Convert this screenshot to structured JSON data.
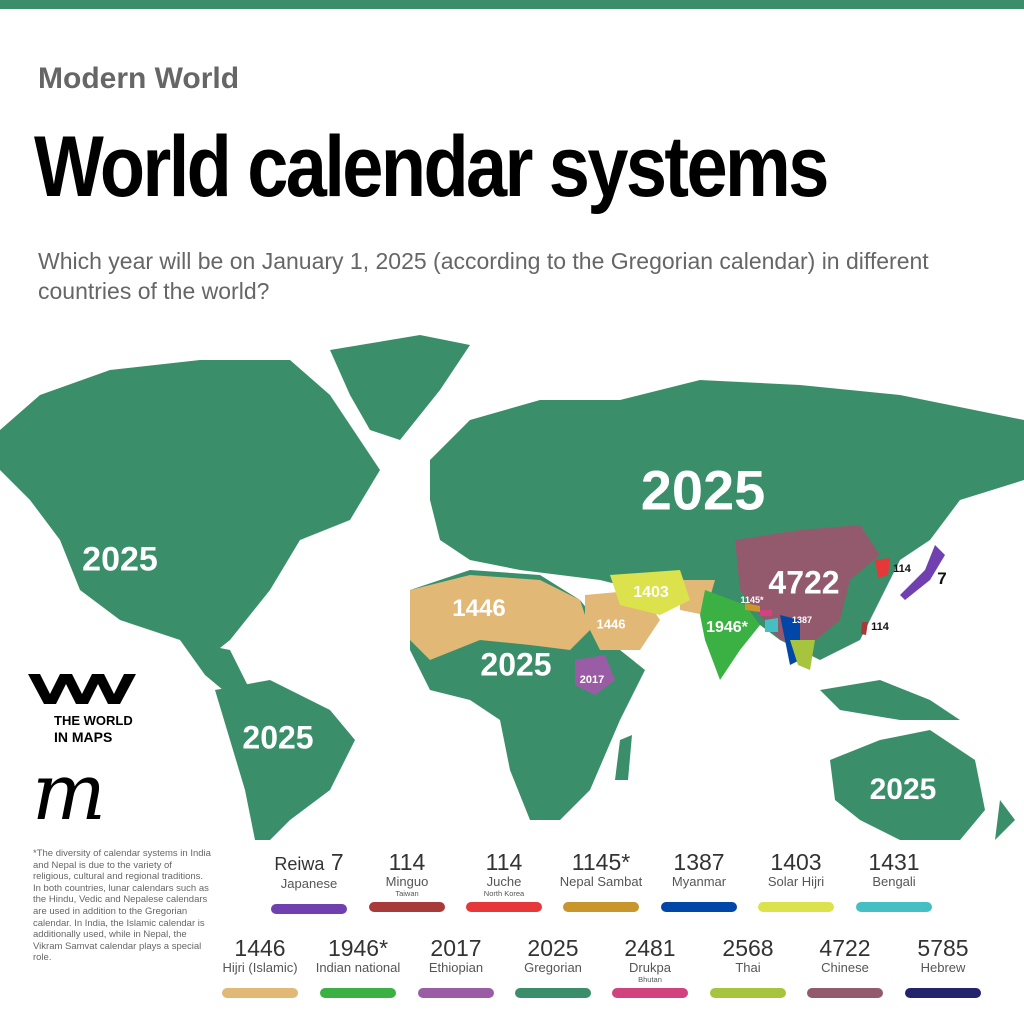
{
  "header": {
    "kicker": "Modern World",
    "title": "World calendar systems",
    "subtitle": "Which year will be on January 1, 2025 (according to the Gregorian calendar) in different countries of the world?"
  },
  "colors": {
    "gregorian": "#3a8f6a",
    "hijri": "#e2b877",
    "chinese": "#935a6e",
    "solar_hijri": "#dbe24c",
    "indian": "#3bb144",
    "ethiopian": "#9a5ca4",
    "myanmar": "#0047a8",
    "thai": "#a7c43e",
    "japanese": "#7040b0",
    "minguo": "#a83a3a",
    "juche": "#e63838",
    "nepal": "#c8962a",
    "bengali": "#45bfc4",
    "drukpa": "#d2427e",
    "hebrew": "#23246b"
  },
  "map_labels": {
    "north_america": "2025",
    "russia": "2025",
    "africa": "2025",
    "south_america": "2025",
    "australia": "2025",
    "china": "4722",
    "sahara": "1446",
    "arabia": "1446",
    "iran": "1403",
    "india": "1946*",
    "ethiopia": "2017",
    "nepal": "1145*",
    "myanmar": "1387",
    "north_korea": "114",
    "japan": "7",
    "taiwan": "114"
  },
  "logo": {
    "line1": "THE WORLD",
    "line2": "IN MAPS"
  },
  "footnote": "*The diversity of calendar systems in India and Nepal is due to the variety of religious, cultural and regional traditions. In both countries, lunar calendars such as the Hindu, Vedic and Nepalese calendars are used in addition to the Gregorian calendar. In India, the Islamic calendar is additionally used, while in Nepal, the Vikram Samvat calendar plays a special role.",
  "legend": [
    {
      "prefix": "Reiwa",
      "year": "7",
      "name": "Japanese",
      "sub": "",
      "color": "#7040b0"
    },
    {
      "prefix": "",
      "year": "114",
      "name": "Minguo",
      "sub": "Taiwan",
      "color": "#a83a3a"
    },
    {
      "prefix": "",
      "year": "114",
      "name": "Juche",
      "sub": "North Korea",
      "color": "#e63838"
    },
    {
      "prefix": "",
      "year": "1145*",
      "name": "Nepal Sambat",
      "sub": "",
      "color": "#c8962a"
    },
    {
      "prefix": "",
      "year": "1387",
      "name": "Myanmar",
      "sub": "",
      "color": "#0047a8"
    },
    {
      "prefix": "",
      "year": "1403",
      "name": "Solar Hijri",
      "sub": "",
      "color": "#dbe24c"
    },
    {
      "prefix": "",
      "year": "1431",
      "name": "Bengali",
      "sub": "",
      "color": "#45bfc4"
    },
    {
      "prefix": "",
      "year": "1446",
      "name": "Hijri (Islamic)",
      "sub": "",
      "color": "#e2b877"
    },
    {
      "prefix": "",
      "year": "1946*",
      "name": "Indian national",
      "sub": "",
      "color": "#3bb144"
    },
    {
      "prefix": "",
      "year": "2017",
      "name": "Ethiopian",
      "sub": "",
      "color": "#9a5ca4"
    },
    {
      "prefix": "",
      "year": "2025",
      "name": "Gregorian",
      "sub": "",
      "color": "#3a8f6a"
    },
    {
      "prefix": "",
      "year": "2481",
      "name": "Drukpa",
      "sub": "Bhutan",
      "color": "#d2427e"
    },
    {
      "prefix": "",
      "year": "2568",
      "name": "Thai",
      "sub": "",
      "color": "#a7c43e"
    },
    {
      "prefix": "",
      "year": "4722",
      "name": "Chinese",
      "sub": "",
      "color": "#935a6e"
    },
    {
      "prefix": "",
      "year": "5785",
      "name": "Hebrew",
      "sub": "",
      "color": "#23246b"
    }
  ]
}
